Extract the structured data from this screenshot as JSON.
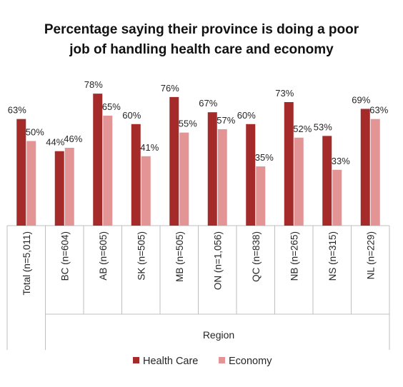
{
  "chart_data": {
    "type": "bar",
    "title_lines": [
      "Percentage saying their province is doing a poor",
      "job of handling health care and economy"
    ],
    "xlabel": "Region",
    "ylabel": "",
    "categories": [
      "Total (n=5,011)",
      "BC (n=604)",
      "AB (n=605)",
      "SK (n=505)",
      "MB (n=505)",
      "ON (n=1,056)",
      "QC (n=838)",
      "NB (n=265)",
      "NS (n=315)",
      "NL (n=229)"
    ],
    "series": [
      {
        "name": "Health Care",
        "color": "#a52a2a",
        "values": [
          63,
          44,
          78,
          60,
          76,
          67,
          60,
          73,
          53,
          69
        ],
        "labels": [
          "63%",
          "44%",
          "78%",
          "60%",
          "76%",
          "67%",
          "60%",
          "73%",
          "53%",
          "69%"
        ]
      },
      {
        "name": "Economy",
        "color": "#e39595",
        "values": [
          50,
          46,
          65,
          41,
          55,
          57,
          35,
          52,
          33,
          63
        ],
        "labels": [
          "50%",
          "46%",
          "65%",
          "41%",
          "55%",
          "57%",
          "35%",
          "52%",
          "33%",
          "63%"
        ]
      }
    ],
    "ylim": [
      0,
      100
    ],
    "grid": false,
    "legend_position": "bottom"
  }
}
